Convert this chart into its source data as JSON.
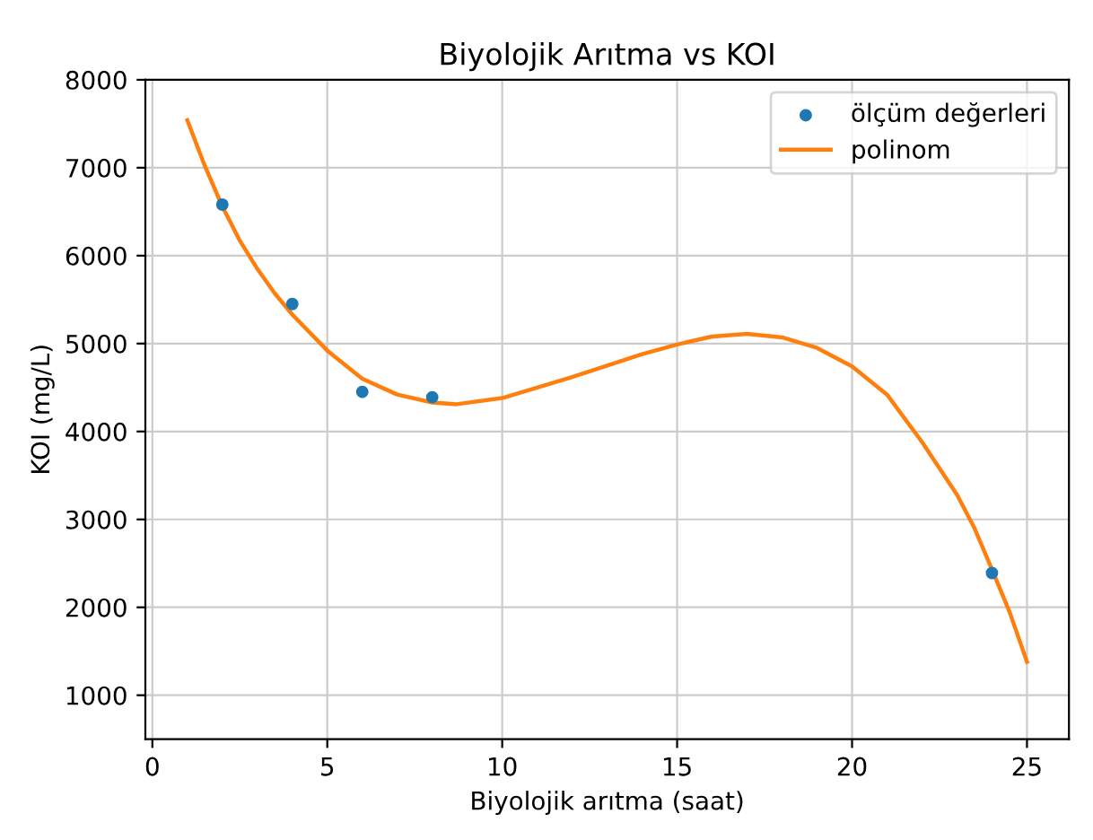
{
  "chart_data": {
    "type": "scatter",
    "title": "Biyolojik Arıtma vs KOI",
    "xlabel": "Biyolojik arıtma (saat)",
    "ylabel": "KOI (mg/L)",
    "xlim": [
      -0.2,
      26.2
    ],
    "xticks": [
      0,
      5,
      10,
      15,
      20,
      25
    ],
    "ylim": [
      500,
      8000
    ],
    "yticks": [
      1000,
      2000,
      3000,
      4000,
      5000,
      6000,
      7000,
      8000
    ],
    "grid": true,
    "legend": "top right",
    "series": [
      {
        "name": "ölçüm değerleri",
        "marker": "circle",
        "color": "#1f77b4",
        "x": [
          2,
          4,
          6,
          8,
          24
        ],
        "values": [
          6580,
          5450,
          4450,
          4390,
          2390
        ]
      },
      {
        "name": "polinom",
        "type": "line",
        "marker": "none",
        "color": "#ff7f0e",
        "x": [
          1,
          1.5,
          2,
          2.5,
          3,
          3.5,
          4,
          5,
          6,
          7,
          8,
          8.7,
          10,
          12,
          14,
          15,
          16,
          17,
          18,
          19,
          20,
          21,
          22,
          23,
          23.5,
          24,
          24.5,
          25
        ],
        "values": [
          7540,
          7020,
          6560,
          6170,
          5850,
          5570,
          5330,
          4920,
          4600,
          4420,
          4330,
          4310,
          4380,
          4620,
          4880,
          4990,
          5080,
          5110,
          5070,
          4950,
          4740,
          4420,
          3880,
          3280,
          2900,
          2430,
          1950,
          1380
        ]
      }
    ]
  }
}
